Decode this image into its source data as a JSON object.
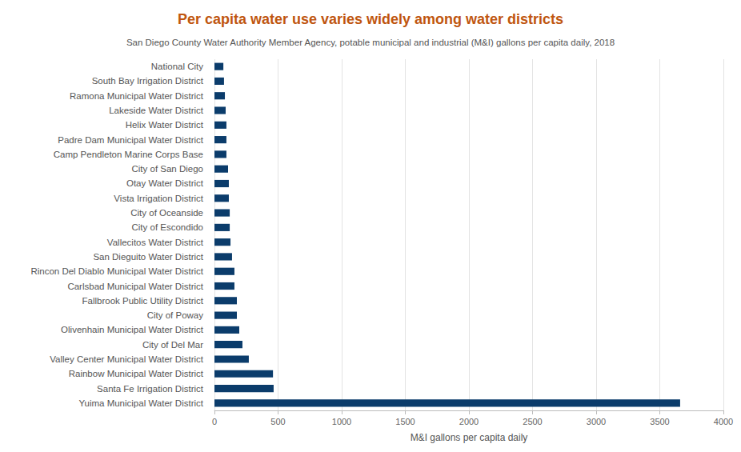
{
  "chart_data": {
    "type": "bar",
    "orientation": "horizontal",
    "title": "Per capita water use varies widely among water districts",
    "subtitle": "San Diego County Water Authority Member Agency, potable municipal and industrial (M&I) gallons per capita daily, 2018",
    "xlabel": "M&I gallons per capita daily",
    "categories": [
      "National City",
      "South Bay Irrigation District",
      "Ramona Municipal Water District",
      "Lakeside Water District",
      "Helix Water District",
      "Padre Dam Municipal Water District",
      "Camp Pendleton Marine Corps Base",
      "City of San Diego",
      "Otay Water District",
      "Vista Irrigation District",
      "City of Oceanside",
      "City of Escondido",
      "Vallecitos Water District",
      "San Dieguito Water District",
      "Rincon Del Diablo Municipal Water District",
      "Carlsbad Municipal Water District",
      "Fallbrook Public Utility District",
      "City of Poway",
      "Olivenhain Municipal Water District",
      "City of Del Mar",
      "Valley Center Municipal Water District",
      "Rainbow Municipal Water District",
      "Santa Fe Irrigation District",
      "Yuima Municipal Water District"
    ],
    "values": [
      70,
      75,
      82,
      88,
      94,
      94,
      94,
      107,
      113,
      113,
      120,
      120,
      126,
      138,
      157,
      157,
      176,
      176,
      195,
      220,
      270,
      460,
      465,
      3660
    ],
    "color": "#0b3c6b",
    "xlim": [
      0,
      4000
    ],
    "xticks": [
      0,
      500,
      1000,
      1500,
      2000,
      2500,
      3000,
      3500,
      4000
    ],
    "grid": true
  }
}
